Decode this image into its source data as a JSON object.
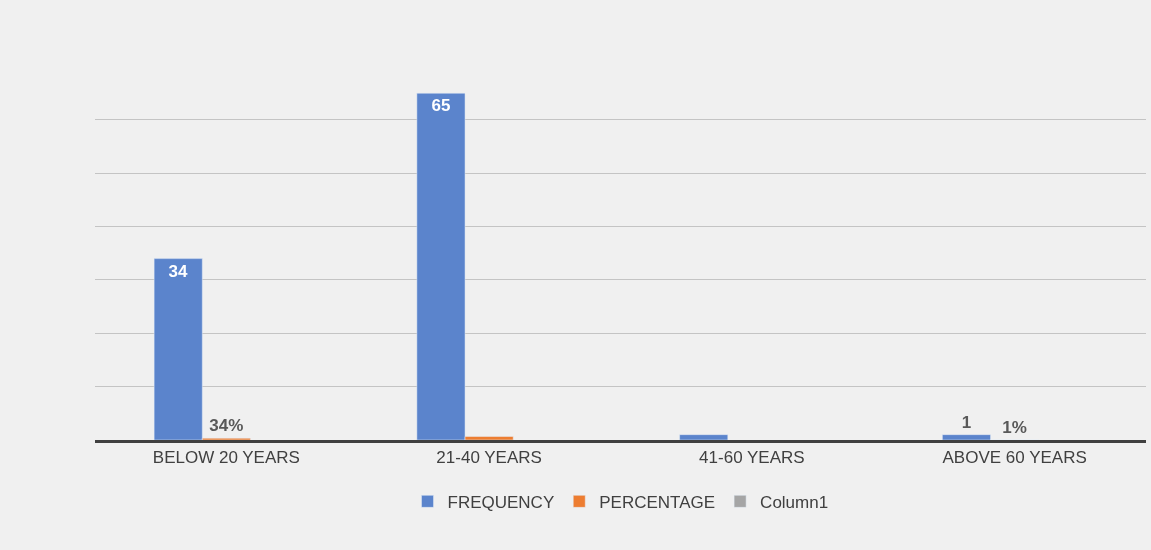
{
  "chart_data": {
    "type": "bar",
    "categories": [
      "BELOW 20 YEARS",
      "21-40 YEARS",
      "41-60 YEARS",
      "ABOVE 60 YEARS"
    ],
    "series": [
      {
        "name": "FREQUENCY",
        "color": "#5b84cc",
        "values": [
          34,
          65,
          1,
          1
        ],
        "value_labels": [
          "34",
          "65",
          null,
          "1"
        ]
      },
      {
        "name": "PERCENTAGE",
        "color": "#ed7d31",
        "values": [
          0.34,
          0.65,
          null,
          0.01
        ],
        "value_labels": [
          "34%",
          null,
          null,
          "1%"
        ]
      },
      {
        "name": "Column1",
        "color": "#a5a5a5",
        "values": [
          null,
          null,
          null,
          null
        ]
      }
    ],
    "tick_labels": "x",
    "grid": "y",
    "legend": "bottom"
  }
}
